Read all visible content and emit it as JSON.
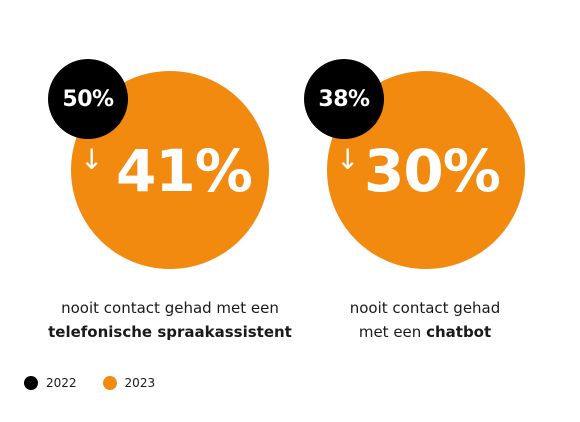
{
  "chart_data": {
    "type": "bubble-comparison",
    "colors": {
      "2022": "#000000",
      "2023": "#f28a10"
    },
    "items": [
      {
        "value_2022": 50,
        "value_2023": 41,
        "label_2022": "50%",
        "label_2023": "41%",
        "caption_line1": "nooit contact gehad met een",
        "caption_line2_bold": "telefonische spraakassistent",
        "caption_line2_plain": ""
      },
      {
        "value_2022": 38,
        "value_2023": 30,
        "label_2022": "38%",
        "label_2023": "30%",
        "caption_line1": "nooit contact gehad",
        "caption_line2_plain": "met een ",
        "caption_line2_bold": "chatbot"
      }
    ],
    "legend": [
      {
        "label": "2022",
        "color": "#000000"
      },
      {
        "label": "2023",
        "color": "#f28a10"
      }
    ]
  },
  "icons": {
    "trend": "arrow-down-icon"
  }
}
